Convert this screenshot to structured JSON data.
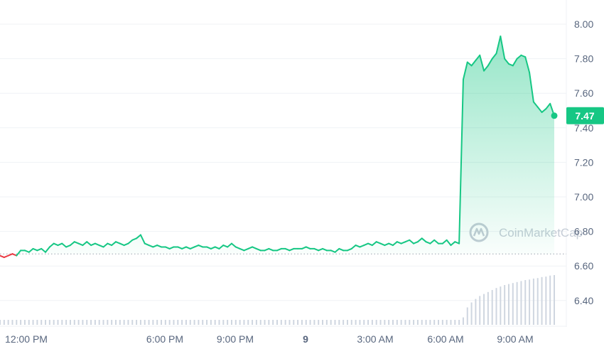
{
  "chart_data": {
    "type": "line",
    "title": "",
    "xlabel": "",
    "ylabel": "",
    "watermark": "CoinMarketCap",
    "colors": {
      "up": "#16c784",
      "down": "#ea3943",
      "grid": "#eff2f5",
      "axis_text": "#58667e",
      "baseline": "#9aa1ad",
      "volume": "#cfd6e0"
    },
    "ylim": [
      6.24,
      8.08
    ],
    "y_ticks": [
      {
        "value": 8.0,
        "label": "8.00"
      },
      {
        "value": 7.8,
        "label": "7.80"
      },
      {
        "value": 7.6,
        "label": "7.60"
      },
      {
        "value": 7.4,
        "label": "7.40"
      },
      {
        "value": 7.2,
        "label": "7.20"
      },
      {
        "value": 7.0,
        "label": "7.00"
      },
      {
        "value": 6.8,
        "label": "6.80"
      },
      {
        "value": 6.6,
        "label": "6.60"
      },
      {
        "value": 6.4,
        "label": "6.40"
      }
    ],
    "x_ticks": [
      {
        "label": "12:00 PM",
        "bold": false
      },
      {
        "label": "6:00 PM",
        "bold": false
      },
      {
        "label": "9:00 PM",
        "bold": false
      },
      {
        "label": "9",
        "bold": true
      },
      {
        "label": "3:00 AM",
        "bold": false
      },
      {
        "label": "6:00 AM",
        "bold": false
      },
      {
        "label": "9:00 AM",
        "bold": false
      }
    ],
    "open_price": 6.67,
    "current_price": 7.47,
    "current_price_label": "7.47",
    "series": [
      {
        "values": [
          6.66,
          6.65,
          6.66,
          6.67,
          6.66,
          6.69,
          6.69,
          6.68,
          6.7,
          6.69,
          6.7,
          6.68,
          6.71,
          6.73,
          6.72,
          6.73,
          6.71,
          6.72,
          6.74,
          6.73,
          6.72,
          6.74,
          6.72,
          6.73,
          6.72,
          6.71,
          6.73,
          6.72,
          6.74,
          6.73,
          6.72,
          6.73,
          6.75,
          6.76,
          6.78,
          6.73,
          6.72,
          6.71,
          6.72,
          6.71,
          6.71,
          6.7,
          6.71,
          6.71,
          6.7,
          6.71,
          6.7,
          6.71,
          6.72,
          6.71,
          6.71,
          6.7,
          6.71,
          6.7,
          6.72,
          6.71,
          6.73,
          6.71,
          6.7,
          6.69,
          6.7,
          6.71,
          6.7,
          6.69,
          6.69,
          6.7,
          6.69,
          6.69,
          6.7,
          6.7,
          6.69,
          6.7,
          6.7,
          6.7,
          6.71,
          6.7,
          6.7,
          6.69,
          6.7,
          6.69,
          6.69,
          6.68,
          6.7,
          6.69,
          6.69,
          6.7,
          6.72,
          6.71,
          6.72,
          6.73,
          6.72,
          6.74,
          6.73,
          6.72,
          6.73,
          6.72,
          6.74,
          6.73,
          6.74,
          6.75,
          6.73,
          6.74,
          6.76,
          6.74,
          6.73,
          6.75,
          6.73,
          6.73,
          6.75,
          6.72,
          6.74,
          6.73,
          7.68,
          7.78,
          7.76,
          7.79,
          7.82,
          7.73,
          7.76,
          7.8,
          7.83,
          7.93,
          7.8,
          7.77,
          7.76,
          7.8,
          7.82,
          7.81,
          7.72,
          7.55,
          7.52,
          7.49,
          7.51,
          7.54,
          7.47
        ]
      }
    ],
    "volume": [
      0.1,
      0.1,
      0.1,
      0.1,
      0.1,
      0.1,
      0.1,
      0.1,
      0.1,
      0.1,
      0.1,
      0.1,
      0.1,
      0.1,
      0.1,
      0.1,
      0.1,
      0.1,
      0.1,
      0.1,
      0.1,
      0.1,
      0.1,
      0.1,
      0.1,
      0.1,
      0.1,
      0.1,
      0.1,
      0.1,
      0.1,
      0.1,
      0.1,
      0.1,
      0.1,
      0.1,
      0.1,
      0.1,
      0.1,
      0.1,
      0.1,
      0.1,
      0.1,
      0.1,
      0.1,
      0.1,
      0.1,
      0.1,
      0.1,
      0.1,
      0.1,
      0.1,
      0.1,
      0.1,
      0.1,
      0.1,
      0.1,
      0.1,
      0.1,
      0.1,
      0.1,
      0.1,
      0.1,
      0.1,
      0.1,
      0.1,
      0.1,
      0.1,
      0.1,
      0.1,
      0.1,
      0.1,
      0.1,
      0.1,
      0.1,
      0.1,
      0.1,
      0.1,
      0.1,
      0.1,
      0.1,
      0.1,
      0.1,
      0.1,
      0.1,
      0.1,
      0.1,
      0.1,
      0.1,
      0.1,
      0.1,
      0.1,
      0.1,
      0.1,
      0.1,
      0.1,
      0.1,
      0.1,
      0.1,
      0.1,
      0.1,
      0.1,
      0.1,
      0.1,
      0.1,
      0.1,
      0.1,
      0.1,
      0.1,
      0.1,
      0.1,
      0.1,
      0.15,
      0.35,
      0.45,
      0.52,
      0.58,
      0.62,
      0.66,
      0.7,
      0.74,
      0.77,
      0.8,
      0.82,
      0.84,
      0.86,
      0.88,
      0.9,
      0.91,
      0.93,
      0.94,
      0.96,
      0.97,
      0.99,
      1.0
    ]
  }
}
